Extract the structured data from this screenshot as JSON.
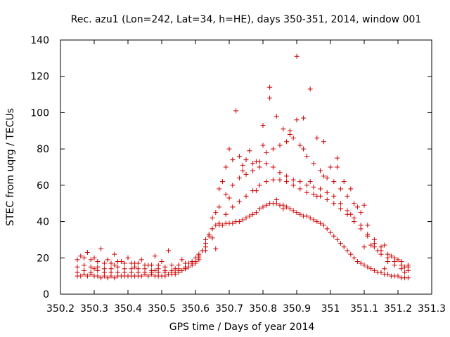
{
  "chart_data": {
    "type": "scatter",
    "title": "Rec. azu1 (Lon=242, Lat=34, h=HE), days 350-351, 2014, window 001",
    "xlabel": "GPS time / Days of year 2014",
    "ylabel": "STEC from uqrg / TECUs",
    "xlim": [
      350.2,
      351.3
    ],
    "ylim": [
      0,
      140
    ],
    "x_ticks": [
      350.2,
      350.3,
      350.4,
      350.5,
      350.6,
      350.7,
      350.8,
      350.9,
      351,
      351.1,
      351.2,
      351.3
    ],
    "x_tick_labels": [
      "350.2",
      "350.3",
      "350.4",
      "350.5",
      "350.6",
      "350.7",
      "350.8",
      "350.9",
      "351",
      "351.1",
      "351.2",
      "351.3"
    ],
    "y_ticks": [
      0,
      20,
      40,
      60,
      80,
      100,
      120,
      140
    ],
    "y_tick_labels": [
      "0",
      "20",
      "40",
      "60",
      "80",
      "100",
      "120",
      "140"
    ],
    "grid": false,
    "legend": "none",
    "marker": "plus",
    "color": "#cc0000",
    "series": [
      {
        "x": [
          350.25,
          350.26,
          350.27,
          350.28,
          350.29,
          350.3,
          350.31,
          350.32,
          350.33,
          350.34,
          350.35,
          350.36,
          350.37,
          350.38,
          350.39,
          350.4,
          350.41,
          350.42,
          350.43,
          350.44,
          350.45,
          350.46,
          350.47,
          350.48,
          350.49,
          350.5,
          350.51,
          350.52,
          350.53,
          350.54,
          350.55,
          350.56,
          350.57,
          350.58,
          350.59,
          350.6,
          350.61,
          350.62,
          350.63,
          350.64,
          350.65,
          350.66,
          350.67,
          350.68,
          350.69,
          350.7,
          350.71,
          350.72,
          350.73,
          350.74,
          350.75,
          350.76,
          350.77,
          350.78,
          350.79,
          350.8,
          350.81,
          350.82,
          350.83,
          350.84,
          350.85,
          350.86,
          350.87,
          350.88,
          350.89,
          350.9,
          350.91,
          350.92,
          350.93,
          350.94,
          350.95,
          350.96,
          350.97,
          350.98,
          350.99,
          351.0,
          351.01,
          351.02,
          351.03,
          351.04,
          351.05,
          351.06,
          351.07,
          351.08,
          351.09,
          351.1,
          351.11,
          351.12,
          351.13,
          351.14,
          351.15,
          351.16,
          351.17,
          351.18,
          351.19,
          351.2,
          351.21,
          351.22,
          351.23
        ],
        "y": [
          10,
          10,
          11,
          10,
          11,
          10,
          10,
          9,
          10,
          9,
          10,
          9,
          10,
          10,
          10,
          10,
          10,
          10,
          10,
          10,
          11,
          10,
          11,
          10,
          10,
          10,
          10,
          11,
          11,
          11,
          12,
          13,
          14,
          15,
          17,
          18,
          21,
          24,
          28,
          32,
          36,
          38,
          38,
          38,
          39,
          39,
          39,
          40,
          40,
          41,
          42,
          43,
          44,
          45,
          47,
          48,
          49,
          50,
          50,
          50,
          49,
          49,
          48,
          47,
          46,
          45,
          44,
          43,
          43,
          42,
          41,
          40,
          39,
          38,
          36,
          34,
          32,
          30,
          28,
          26,
          24,
          22,
          20,
          18,
          17,
          16,
          15,
          14,
          13,
          12,
          12,
          11,
          11,
          10,
          10,
          10,
          9,
          9,
          9
        ]
      },
      {
        "x": [
          350.25,
          350.27,
          350.29,
          350.31,
          350.33,
          350.35,
          350.37,
          350.39,
          350.41,
          350.43,
          350.45,
          350.47,
          350.49,
          350.51,
          350.53,
          350.55,
          350.57,
          350.59,
          350.61,
          350.63,
          350.65,
          350.67,
          350.69,
          350.71,
          350.73,
          350.75,
          350.77,
          350.79,
          350.81,
          350.83,
          350.85,
          350.87,
          350.89,
          350.91,
          350.93,
          350.95,
          350.97,
          350.99,
          351.01,
          351.03,
          351.05,
          351.07,
          351.09,
          351.11,
          351.13,
          351.15,
          351.17,
          351.19,
          351.21,
          351.23
        ],
        "y": [
          12,
          13,
          12,
          13,
          12,
          12,
          12,
          12,
          12,
          12,
          12,
          12,
          12,
          12,
          12,
          13,
          14,
          16,
          19,
          24,
          31,
          39,
          44,
          48,
          51,
          54,
          57,
          60,
          62,
          63,
          63,
          62,
          60,
          58,
          56,
          55,
          54,
          52,
          50,
          47,
          44,
          40,
          36,
          32,
          26,
          22,
          18,
          16,
          14,
          13
        ]
      },
      {
        "x": [
          350.25,
          350.27,
          350.29,
          350.31,
          350.33,
          350.35,
          350.37,
          350.39,
          350.41,
          350.43,
          350.45,
          350.47,
          350.49,
          350.51,
          350.53,
          350.55,
          350.57,
          350.59,
          350.61,
          350.63,
          350.65,
          350.67,
          350.69,
          350.71,
          350.73,
          350.75,
          350.77,
          350.79,
          350.81,
          350.83,
          350.85,
          350.87,
          350.89,
          350.91,
          350.93,
          350.95,
          350.97,
          350.99,
          351.01,
          351.03,
          351.05,
          351.07,
          351.09,
          351.11,
          351.13,
          351.15,
          351.17,
          351.19,
          351.21,
          351.23
        ],
        "y": [
          15,
          16,
          15,
          15,
          14,
          14,
          15,
          14,
          14,
          14,
          14,
          13,
          14,
          13,
          13,
          14,
          15,
          17,
          20,
          26,
          36,
          48,
          55,
          60,
          64,
          66,
          68,
          70,
          72,
          70,
          67,
          65,
          63,
          62,
          60,
          59,
          58,
          56,
          54,
          50,
          46,
          42,
          38,
          33,
          28,
          24,
          20,
          18,
          16,
          15
        ]
      },
      {
        "x": [
          350.25,
          350.27,
          350.29,
          350.31,
          350.33,
          350.35,
          350.37,
          350.39,
          350.41,
          350.43,
          350.45,
          350.47,
          350.49,
          350.51,
          350.53,
          350.55,
          350.57,
          350.59,
          350.61,
          350.63,
          350.65,
          350.67,
          350.69,
          350.71,
          350.73,
          350.75,
          350.77,
          350.79,
          350.81,
          350.83,
          350.85,
          350.87,
          350.89,
          350.91,
          350.93,
          350.95,
          350.97,
          350.99,
          351.01,
          351.03,
          351.05,
          351.07,
          351.09,
          351.11,
          351.13,
          351.15,
          351.17,
          351.19,
          351.21,
          351.23
        ],
        "y": [
          19,
          20,
          19,
          18,
          17,
          17,
          18,
          17,
          17,
          17,
          16,
          16,
          16,
          15,
          16,
          16,
          17,
          18,
          22,
          30,
          42,
          58,
          70,
          74,
          76,
          74,
          72,
          73,
          78,
          80,
          82,
          84,
          86,
          82,
          76,
          72,
          68,
          64,
          62,
          58,
          54,
          50,
          45,
          38,
          30,
          26,
          22,
          20,
          18,
          16
        ]
      },
      {
        "x": [
          350.26,
          350.28,
          350.3,
          350.32,
          350.34,
          350.36,
          350.38,
          350.4,
          350.42,
          350.44,
          350.46,
          350.48,
          350.5,
          350.52,
          350.54,
          350.56,
          350.58,
          350.6,
          350.62,
          350.64,
          350.66,
          350.68,
          350.7,
          350.72,
          350.74,
          350.76,
          350.78,
          350.8,
          350.82,
          350.84,
          350.86,
          350.88,
          350.9,
          350.92,
          350.94,
          350.96,
          350.98,
          351.0,
          351.02,
          351.04,
          351.06,
          351.08,
          351.1,
          351.12,
          351.14,
          351.16,
          351.18,
          351.2,
          351.22
        ],
        "y": [
          21,
          23,
          20,
          25,
          19,
          22,
          18,
          20,
          17,
          19,
          16,
          21,
          18,
          24,
          14,
          19,
          17,
          20,
          24,
          33,
          45,
          62,
          80,
          101,
          71,
          79,
          73,
          93,
          114,
          98,
          91,
          88,
          131,
          97,
          113,
          86,
          84,
          70,
          75,
          62,
          58,
          48,
          49,
          27,
          24,
          27,
          21,
          19,
          15
        ]
      },
      {
        "x": [
          350.3,
          350.36,
          350.42,
          350.48,
          350.54,
          350.6,
          350.66,
          350.7,
          350.74,
          350.78,
          350.8,
          350.82,
          350.84,
          350.86,
          350.88,
          350.9,
          350.92,
          350.94,
          350.96,
          350.98,
          351.02,
          351.06,
          351.1,
          351.16,
          351.22
        ],
        "y": [
          14,
          16,
          15,
          13,
          12,
          17,
          25,
          53,
          68,
          57,
          82,
          108,
          52,
          47,
          90,
          96,
          80,
          62,
          54,
          65,
          70,
          44,
          26,
          14,
          12
        ]
      }
    ]
  }
}
